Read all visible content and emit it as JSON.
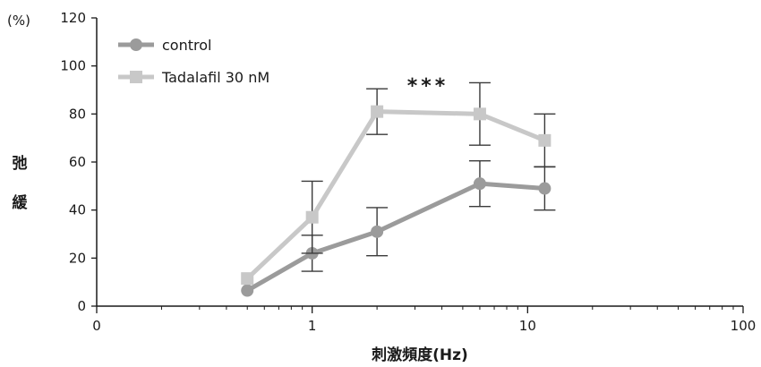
{
  "chart_data": {
    "type": "line",
    "x_scale": "log",
    "xlim_labels": [
      "0",
      "1",
      "10",
      "100"
    ],
    "x_ticks": [
      {
        "value": 0.1,
        "label": "0"
      },
      {
        "value": 1,
        "label": "1"
      },
      {
        "value": 10,
        "label": "10"
      },
      {
        "value": 100,
        "label": "100"
      }
    ],
    "ylim": [
      0,
      120
    ],
    "y_ticks": [
      0,
      20,
      40,
      60,
      80,
      100,
      120
    ],
    "y_unit": "(%)",
    "ylabel": "弛緩",
    "xlabel": "刺激頻度(Hz)",
    "title": "",
    "grid": false,
    "legend_position": "top-left",
    "annotation": "***",
    "series": [
      {
        "name": "control",
        "color": "#9b9b9b",
        "marker": "circle",
        "x": [
          0.5,
          1,
          2,
          6,
          12
        ],
        "y": [
          6.5,
          22,
          31,
          51,
          49
        ],
        "err": [
          0,
          7.5,
          10,
          9.5,
          9
        ]
      },
      {
        "name": "Tadalafil 30 nM",
        "color": "#c8c8c8",
        "marker": "square",
        "x": [
          0.5,
          1,
          2,
          6,
          12
        ],
        "y": [
          11.5,
          37,
          81,
          80,
          69
        ],
        "err": [
          0,
          15,
          9.5,
          13,
          11
        ]
      }
    ]
  }
}
